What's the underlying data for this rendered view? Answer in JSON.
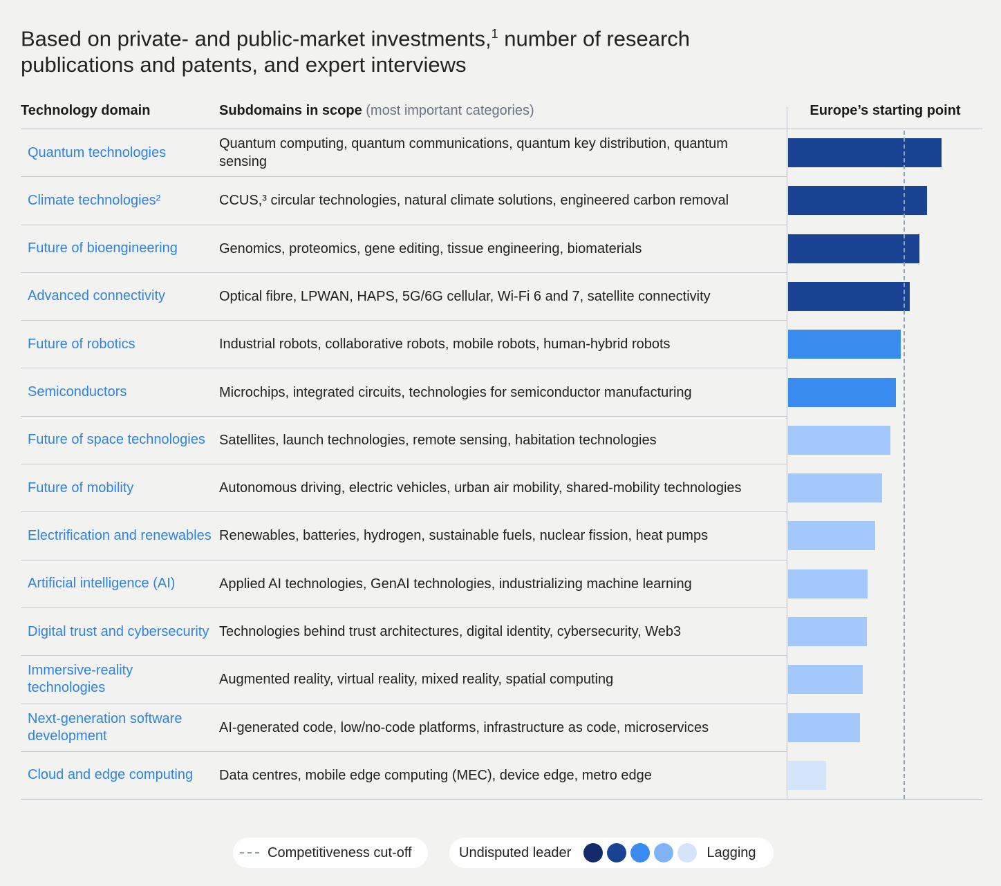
{
  "title": {
    "main": "Based on private- and public-market investments,",
    "footnote": "1",
    "rest": " number of research publications and patents, and expert interviews"
  },
  "headers": {
    "domain": "Technology domain",
    "subdomains": "Subdomains in scope",
    "subdomains_note": "(most important categories)",
    "bar": "Europe’s starting point"
  },
  "colors": {
    "level_1": "#1b4393",
    "level_2": "#3a8bf0",
    "level_3": "#a3c8fb",
    "level_4": "#d4e4fb",
    "legend_dots": [
      "#132b6b",
      "#1b4393",
      "#3a8bf0",
      "#7fb3f5",
      "#d4e4fb"
    ],
    "domain_text": "#2e83e0",
    "cutoff_line": "#8fa3b6"
  },
  "chart_data": {
    "type": "bar",
    "orientation": "horizontal",
    "cutoff_value": 0.595,
    "xlim": [
      0,
      1
    ],
    "categories": [
      "Quantum technologies",
      "Climate technologies²",
      "Future of bioengineering",
      "Advanced connectivity",
      "Future of robotics",
      "Semiconductors",
      "Future of space technologies",
      "Future of mobility",
      "Electrification and renewables",
      "Artificial intelligence (AI)",
      "Digital trust and cybersecurity",
      "Immersive-reality technologies",
      "Next-generation software development",
      "Cloud and edge computing"
    ],
    "subdomains": [
      "Quantum computing, quantum communications, quantum key distribution, quantum sensing",
      "CCUS,³ circular technologies, natural climate solutions, engineered carbon removal",
      "Genomics, proteomics, gene editing, tissue engineering, biomaterials",
      "Optical fibre, LPWAN, HAPS, 5G/6G cellular, Wi-Fi 6 and 7, satellite connectivity",
      "Industrial robots, collaborative robots, mobile robots, human-hybrid robots",
      "Microchips, integrated circuits, technologies for semiconductor manufacturing",
      "Satellites, launch technologies, remote sensing, habitation technologies",
      "Autonomous driving, electric vehicles, urban air mobility, shared-mobility technologies",
      "Renewables, batteries, hydrogen, sustainable fuels, nuclear fission, heat pumps",
      "Applied AI technologies, GenAI technologies, industrializing machine learning",
      "Technologies behind trust architectures, digital identity, cybersecurity, Web3",
      "Augmented reality, virtual reality, mixed reality, spatial computing",
      "AI-generated code, low/no-code platforms, infrastructure as code, microservices",
      "Data centres, mobile edge computing (MEC), device edge, metro edge"
    ],
    "values": [
      0.79,
      0.715,
      0.675,
      0.625,
      0.58,
      0.555,
      0.525,
      0.485,
      0.45,
      0.41,
      0.405,
      0.385,
      0.37,
      0.195
    ],
    "levels": [
      1,
      1,
      1,
      1,
      2,
      2,
      3,
      3,
      3,
      3,
      3,
      3,
      3,
      4
    ]
  },
  "legend": {
    "cutoff_label": "Competitiveness cut-off",
    "scale_start": "Undisputed leader",
    "scale_end": "Lagging"
  }
}
